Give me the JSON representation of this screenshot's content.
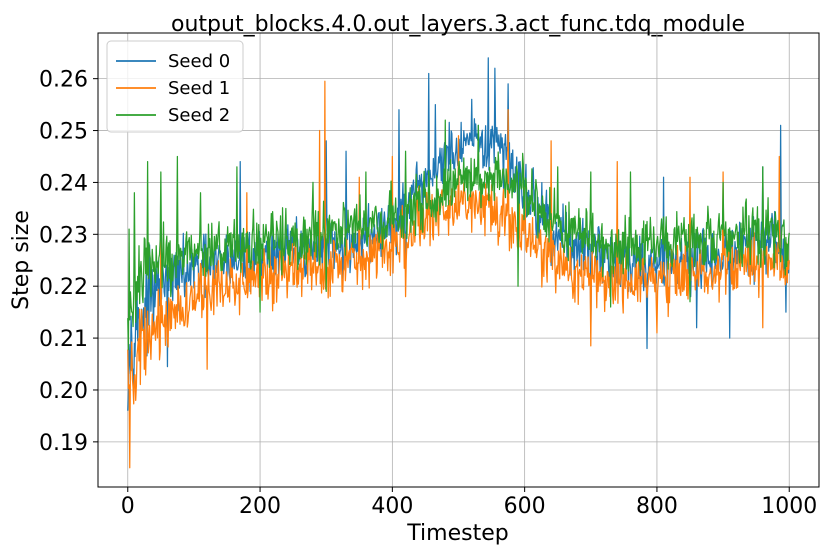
{
  "chart_data": {
    "type": "line",
    "title": "output_blocks.4.0.out_layers.3.act_func.tdq_module",
    "xlabel": "Timestep",
    "ylabel": "Step size",
    "xlim": [
      -45,
      1045
    ],
    "ylim": [
      0.1813,
      0.2688
    ],
    "xticks": [
      0,
      200,
      400,
      600,
      800,
      1000
    ],
    "yticks": [
      0.19,
      0.2,
      0.21,
      0.22,
      0.23,
      0.24,
      0.25,
      0.26
    ],
    "ytick_labels": [
      "0.19",
      "0.20",
      "0.21",
      "0.22",
      "0.23",
      "0.24",
      "0.25",
      "0.26"
    ],
    "grid": true,
    "legend_position": "top-left",
    "x": [
      0,
      25,
      50,
      75,
      100,
      125,
      150,
      175,
      200,
      225,
      250,
      275,
      300,
      325,
      350,
      375,
      400,
      425,
      450,
      475,
      500,
      525,
      550,
      575,
      600,
      625,
      650,
      675,
      700,
      725,
      750,
      775,
      800,
      825,
      850,
      875,
      900,
      925,
      950,
      975,
      1000
    ],
    "series": [
      {
        "name": "Seed 0",
        "color": "#1f77b4",
        "values": [
          0.208,
          0.216,
          0.22,
          0.222,
          0.223,
          0.224,
          0.225,
          0.2255,
          0.226,
          0.2265,
          0.227,
          0.227,
          0.2275,
          0.228,
          0.229,
          0.23,
          0.232,
          0.235,
          0.24,
          0.244,
          0.246,
          0.247,
          0.247,
          0.245,
          0.239,
          0.234,
          0.23,
          0.228,
          0.227,
          0.226,
          0.2255,
          0.225,
          0.2245,
          0.225,
          0.2255,
          0.226,
          0.2265,
          0.227,
          0.228,
          0.229,
          0.225
        ],
        "extremes": [
          [
            0,
            0.196
          ],
          [
            25,
            0.207
          ],
          [
            60,
            0.2045
          ],
          [
            130,
            0.217
          ],
          [
            170,
            0.244
          ],
          [
            185,
            0.219
          ],
          [
            300,
            0.248
          ],
          [
            330,
            0.246
          ],
          [
            410,
            0.254
          ],
          [
            420,
            0.223
          ],
          [
            455,
            0.261
          ],
          [
            465,
            0.255
          ],
          [
            520,
            0.256
          ],
          [
            545,
            0.264
          ],
          [
            555,
            0.262
          ],
          [
            575,
            0.259
          ],
          [
            590,
            0.232
          ],
          [
            640,
            0.224
          ],
          [
            700,
            0.211
          ],
          [
            735,
            0.226
          ],
          [
            785,
            0.208
          ],
          [
            810,
            0.241
          ],
          [
            860,
            0.212
          ],
          [
            910,
            0.21
          ],
          [
            960,
            0.243
          ],
          [
            987,
            0.251
          ],
          [
            995,
            0.215
          ]
        ]
      },
      {
        "name": "Seed 1",
        "color": "#ff7f0e",
        "values": [
          0.2,
          0.208,
          0.213,
          0.216,
          0.218,
          0.219,
          0.22,
          0.221,
          0.222,
          0.2225,
          0.223,
          0.2235,
          0.224,
          0.2245,
          0.2255,
          0.2265,
          0.228,
          0.23,
          0.233,
          0.235,
          0.236,
          0.2355,
          0.234,
          0.232,
          0.229,
          0.226,
          0.224,
          0.223,
          0.222,
          0.2215,
          0.221,
          0.221,
          0.2215,
          0.222,
          0.2225,
          0.223,
          0.2235,
          0.224,
          0.2245,
          0.225,
          0.224
        ],
        "extremes": [
          [
            3,
            0.185
          ],
          [
            12,
            0.198
          ],
          [
            25,
            0.204
          ],
          [
            50,
            0.229
          ],
          [
            120,
            0.204
          ],
          [
            180,
            0.238
          ],
          [
            290,
            0.25
          ],
          [
            298,
            0.2595
          ],
          [
            350,
            0.241
          ],
          [
            400,
            0.245
          ],
          [
            420,
            0.218
          ],
          [
            500,
            0.249
          ],
          [
            575,
            0.254
          ],
          [
            600,
            0.239
          ],
          [
            640,
            0.248
          ],
          [
            700,
            0.2085
          ],
          [
            740,
            0.244
          ],
          [
            800,
            0.211
          ],
          [
            850,
            0.241
          ],
          [
            900,
            0.242
          ],
          [
            960,
            0.212
          ],
          [
            985,
            0.245
          ],
          [
            995,
            0.222
          ]
        ]
      },
      {
        "name": "Seed 2",
        "color": "#2ca02c",
        "values": [
          0.215,
          0.223,
          0.225,
          0.226,
          0.2265,
          0.227,
          0.2275,
          0.228,
          0.2285,
          0.229,
          0.229,
          0.2295,
          0.23,
          0.2305,
          0.231,
          0.232,
          0.233,
          0.2345,
          0.236,
          0.238,
          0.24,
          0.241,
          0.241,
          0.24,
          0.238,
          0.235,
          0.232,
          0.23,
          0.229,
          0.228,
          0.2275,
          0.2275,
          0.228,
          0.2285,
          0.229,
          0.2295,
          0.23,
          0.23,
          0.23,
          0.23,
          0.228
        ],
        "extremes": [
          [
            2,
            0.231
          ],
          [
            10,
            0.238
          ],
          [
            30,
            0.244
          ],
          [
            50,
            0.242
          ],
          [
            65,
            0.218
          ],
          [
            75,
            0.245
          ],
          [
            110,
            0.238
          ],
          [
            165,
            0.243
          ],
          [
            200,
            0.215
          ],
          [
            280,
            0.24
          ],
          [
            300,
            0.219
          ],
          [
            360,
            0.242
          ],
          [
            420,
            0.246
          ],
          [
            480,
            0.252
          ],
          [
            530,
            0.251
          ],
          [
            590,
            0.22
          ],
          [
            650,
            0.243
          ],
          [
            700,
            0.242
          ],
          [
            730,
            0.216
          ],
          [
            760,
            0.242
          ],
          [
            850,
            0.217
          ],
          [
            900,
            0.24
          ],
          [
            960,
            0.243
          ],
          [
            998,
            0.225
          ]
        ]
      }
    ]
  }
}
